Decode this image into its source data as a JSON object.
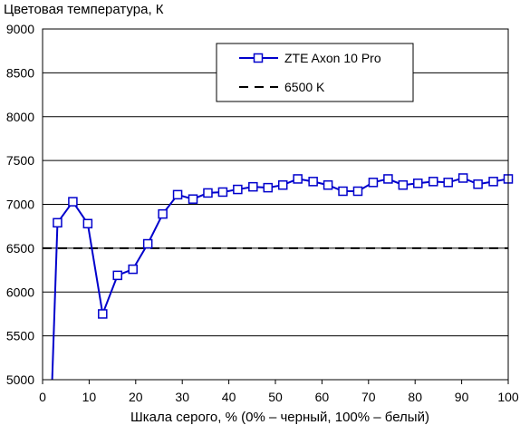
{
  "chart_data": {
    "type": "line",
    "title": "Цветовая температура, К",
    "xlabel": "Шкала серого, % (0% – черный, 100% – белый)",
    "ylabel": "",
    "xlim": [
      0,
      100
    ],
    "ylim": [
      5000,
      9000
    ],
    "x_ticks": [
      "0",
      "10",
      "20",
      "30",
      "40",
      "50",
      "60",
      "70",
      "80",
      "90",
      "100"
    ],
    "y_ticks": [
      "5000",
      "5500",
      "6000",
      "6500",
      "7000",
      "7500",
      "8000",
      "8500",
      "9000"
    ],
    "grid": "horizontal",
    "legend_position": "top-right",
    "series": [
      {
        "name": "ZTE Axon 10 Pro",
        "color": "#0000cc",
        "marker": "open-square",
        "x": [
          3.2,
          6.5,
          9.7,
          12.9,
          16.1,
          19.4,
          22.6,
          25.8,
          29.0,
          32.3,
          35.5,
          38.7,
          41.9,
          45.2,
          48.4,
          51.6,
          54.8,
          58.1,
          61.3,
          64.5,
          67.7,
          71.0,
          74.2,
          77.4,
          80.6,
          83.9,
          87.1,
          90.3,
          93.5,
          96.8,
          100
        ],
        "y": [
          6790,
          7030,
          6780,
          5750,
          6190,
          6260,
          6550,
          6890,
          7110,
          7060,
          7130,
          7140,
          7170,
          7200,
          7190,
          7220,
          7290,
          7260,
          7220,
          7150,
          7150,
          7250,
          7290,
          7220,
          7240,
          7260,
          7250,
          7300,
          7230,
          7260,
          7290
        ],
        "lead_in": {
          "x": [
            2.0,
            3.2
          ],
          "y": [
            4900,
            6790
          ]
        }
      },
      {
        "name": "6500 K",
        "color": "#000000",
        "style": "dashed",
        "constant": 6500
      }
    ]
  }
}
